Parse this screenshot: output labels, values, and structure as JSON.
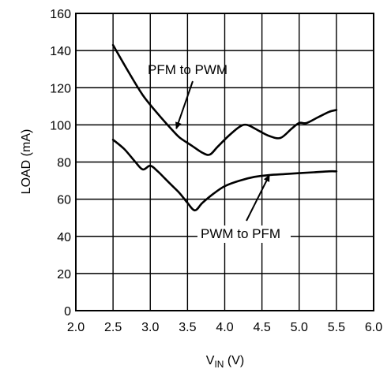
{
  "chart_data": {
    "type": "line",
    "title": "",
    "xlabel": "V",
    "xlabel_sub": "IN",
    "xlabel_unit": " (V)",
    "ylabel": "LOAD (mA)",
    "xlim": [
      2.0,
      6.0
    ],
    "ylim": [
      0,
      160
    ],
    "x_ticks": [
      "2.0",
      "2.5",
      "3.0",
      "3.5",
      "4.0",
      "4.5",
      "5.0",
      "5.5",
      "6.0"
    ],
    "y_ticks": [
      "0",
      "20",
      "40",
      "60",
      "80",
      "100",
      "120",
      "140",
      "160"
    ],
    "grid": true,
    "series": [
      {
        "name": "PFM to PWM",
        "x": [
          2.5,
          2.7,
          2.9,
          3.1,
          3.3,
          3.4,
          3.55,
          3.7,
          3.8,
          3.9,
          4.05,
          4.2,
          4.3,
          4.45,
          4.6,
          4.75,
          4.9,
          5.0,
          5.1,
          5.25,
          5.4,
          5.5
        ],
        "y": [
          143,
          129,
          116,
          106,
          97,
          93,
          89,
          85,
          84,
          88,
          94,
          99,
          100,
          97,
          94,
          93,
          98,
          101,
          101,
          104,
          107,
          108
        ]
      },
      {
        "name": "PWM to PFM",
        "x": [
          2.5,
          2.65,
          2.8,
          2.9,
          3.0,
          3.1,
          3.2,
          3.3,
          3.4,
          3.5,
          3.6,
          3.7,
          3.85,
          4.0,
          4.2,
          4.4,
          4.6,
          4.8,
          5.0,
          5.2,
          5.4,
          5.5
        ],
        "y": [
          92,
          87,
          80,
          76,
          78,
          75,
          71,
          67,
          63,
          58,
          54,
          58,
          63,
          67,
          70,
          72,
          73,
          73.5,
          74,
          74.5,
          75,
          75
        ]
      }
    ],
    "annotations": [
      {
        "label": "PFM to PWM",
        "series": "PFM to PWM",
        "points_to": [
          3.35,
          98
        ]
      },
      {
        "label": "PWM to PFM",
        "series": "PWM to PFM",
        "points_to": [
          4.6,
          73
        ]
      }
    ]
  }
}
